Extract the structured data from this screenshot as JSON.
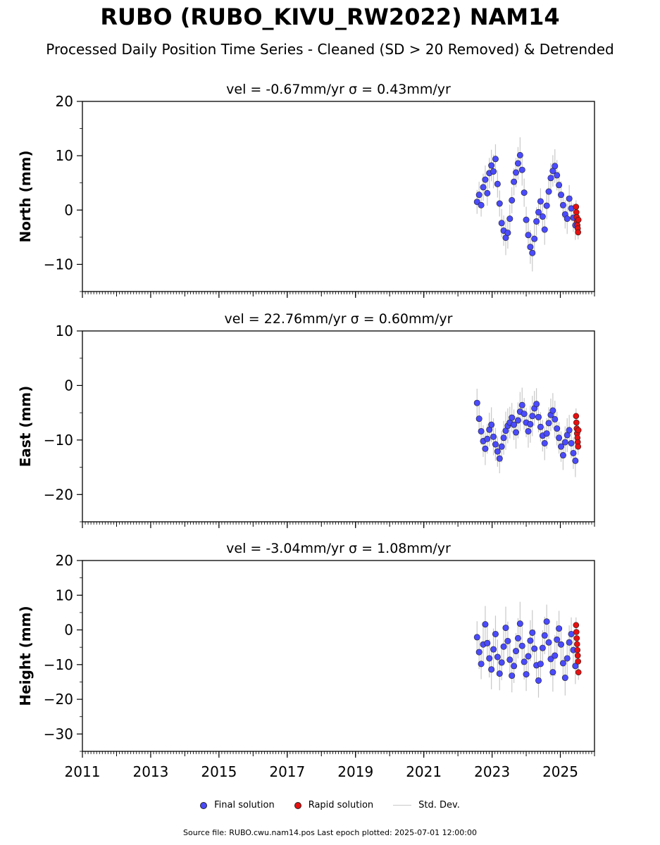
{
  "title": "RUBO (RUBO_KIVU_RW2022) NAM14",
  "subtitle": "Processed Daily Position Time Series - Cleaned (SD > 20 Removed) & Detrended",
  "legend": {
    "final": "Final solution",
    "rapid": "Rapid solution",
    "std": "Std. Dev."
  },
  "footer": {
    "source": "Source file: RUBO.cwu.nam14.pos",
    "last_epoch": "Last epoch plotted: 2025-07-01 12:00:00"
  },
  "colors": {
    "final": "#4a4aff",
    "rapid": "#e81010",
    "std": "#c8c8c8",
    "axis": "#000000"
  },
  "chart_data": [
    {
      "type": "scatter",
      "title": "vel = -0.67mm/yr   σ = 0.43mm/yr",
      "ylabel": "North (mm)",
      "xlim": [
        2011.0,
        2026.0
      ],
      "ylim": [
        -15,
        20
      ],
      "yticks": [
        -10,
        0,
        10,
        20
      ],
      "ytick_labels": [
        "−10",
        "0",
        "10",
        "20"
      ],
      "xticks": [
        2011,
        2013,
        2015,
        2017,
        2019,
        2021,
        2023,
        2025
      ],
      "show_xtick_labels": false,
      "series": [
        {
          "name": "Final solution",
          "x": [
            2022.56,
            2022.62,
            2022.68,
            2022.74,
            2022.8,
            2022.86,
            2022.92,
            2022.98,
            2023.04,
            2023.1,
            2023.16,
            2023.22,
            2023.28,
            2023.34,
            2023.4,
            2023.46,
            2023.52,
            2023.58,
            2023.64,
            2023.7,
            2023.76,
            2023.82,
            2023.88,
            2023.94,
            2024.0,
            2024.06,
            2024.12,
            2024.18,
            2024.24,
            2024.3,
            2024.36,
            2024.42,
            2024.48,
            2024.54,
            2024.6,
            2024.66,
            2024.72,
            2024.78,
            2024.84,
            2024.9,
            2024.96,
            2025.02,
            2025.08,
            2025.14,
            2025.2,
            2025.26,
            2025.32,
            2025.38,
            2025.44
          ],
          "y": [
            1.5,
            2.8,
            0.9,
            4.2,
            5.6,
            3.1,
            6.8,
            8.2,
            7.1,
            9.4,
            4.8,
            1.2,
            -2.4,
            -3.8,
            -5.1,
            -4.2,
            -1.6,
            1.8,
            5.2,
            6.9,
            8.6,
            10.1,
            7.4,
            3.2,
            -1.8,
            -4.6,
            -6.8,
            -7.9,
            -5.3,
            -2.1,
            -0.4,
            1.6,
            -1.2,
            -3.6,
            0.8,
            3.4,
            5.9,
            7.2,
            8.1,
            6.4,
            4.6,
            2.8,
            0.9,
            -0.8,
            -1.6,
            2.1,
            0.3,
            -1.4,
            -2.8
          ],
          "std": [
            2.2,
            2.4,
            2.1,
            2.5,
            2.6,
            2.3,
            2.8,
            2.9,
            3.1,
            2.7,
            2.5,
            2.4,
            2.6,
            2.8,
            3.2,
            2.9,
            2.6,
            2.4,
            2.5,
            2.7,
            3.0,
            3.3,
            2.9,
            2.6,
            2.4,
            2.7,
            3.1,
            3.4,
            2.9,
            2.6,
            2.5,
            2.4,
            2.6,
            2.8,
            2.5,
            2.6,
            2.7,
            2.9,
            3.1,
            2.8,
            2.6,
            2.5,
            2.4,
            2.6,
            2.8,
            2.5,
            2.4,
            2.6,
            2.7
          ]
        },
        {
          "name": "Rapid solution",
          "x": [
            2025.46,
            2025.47,
            2025.48,
            2025.49,
            2025.5,
            2025.51,
            2025.52,
            2025.53
          ],
          "y": [
            0.6,
            -0.4,
            -1.3,
            -2.1,
            -2.8,
            -3.4,
            -4.1,
            -1.8
          ],
          "std": [
            1.2,
            1.3,
            1.2,
            1.4,
            1.3,
            1.2,
            1.3,
            1.2
          ]
        }
      ]
    },
    {
      "type": "scatter",
      "title": "vel = 22.76mm/yr   σ = 0.60mm/yr",
      "ylabel": "East (mm)",
      "xlim": [
        2011.0,
        2026.0
      ],
      "ylim": [
        -25,
        10
      ],
      "yticks": [
        -20,
        -10,
        0,
        10
      ],
      "ytick_labels": [
        "−20",
        "−10",
        "0",
        "10"
      ],
      "xticks": [
        2011,
        2013,
        2015,
        2017,
        2019,
        2021,
        2023,
        2025
      ],
      "show_xtick_labels": false,
      "series": [
        {
          "name": "Final solution",
          "x": [
            2022.56,
            2022.62,
            2022.68,
            2022.74,
            2022.8,
            2022.86,
            2022.92,
            2022.98,
            2023.04,
            2023.1,
            2023.16,
            2023.22,
            2023.28,
            2023.34,
            2023.4,
            2023.46,
            2023.52,
            2023.58,
            2023.64,
            2023.7,
            2023.76,
            2023.82,
            2023.88,
            2023.94,
            2024.0,
            2024.06,
            2024.12,
            2024.18,
            2024.24,
            2024.3,
            2024.36,
            2024.42,
            2024.48,
            2024.54,
            2024.6,
            2024.66,
            2024.72,
            2024.78,
            2024.84,
            2024.9,
            2024.96,
            2025.02,
            2025.08,
            2025.14,
            2025.2,
            2025.26,
            2025.32,
            2025.38,
            2025.44
          ],
          "y": [
            -3.2,
            -6.1,
            -8.4,
            -10.2,
            -11.6,
            -9.8,
            -8.1,
            -7.2,
            -9.4,
            -10.8,
            -12.1,
            -13.4,
            -11.2,
            -9.6,
            -8.3,
            -7.4,
            -6.8,
            -5.9,
            -7.2,
            -8.6,
            -6.4,
            -4.8,
            -3.6,
            -5.2,
            -6.8,
            -8.4,
            -7.1,
            -5.6,
            -4.2,
            -3.4,
            -5.8,
            -7.6,
            -9.2,
            -10.6,
            -8.8,
            -6.9,
            -5.4,
            -4.6,
            -6.2,
            -7.9,
            -9.6,
            -11.2,
            -12.8,
            -10.4,
            -9.1,
            -8.2,
            -10.6,
            -12.4,
            -13.8
          ],
          "std": [
            2.6,
            2.8,
            2.5,
            2.9,
            3.0,
            2.7,
            3.1,
            3.2,
            3.4,
            3.0,
            2.8,
            2.7,
            2.9,
            3.1,
            3.5,
            3.2,
            2.9,
            2.7,
            2.8,
            3.0,
            3.3,
            3.6,
            3.2,
            2.9,
            2.7,
            3.0,
            3.4,
            3.7,
            3.2,
            2.9,
            2.8,
            2.7,
            2.9,
            3.1,
            2.8,
            2.9,
            3.0,
            3.2,
            3.4,
            3.1,
            2.9,
            2.8,
            2.7,
            2.9,
            3.1,
            2.8,
            2.7,
            2.9,
            3.0
          ]
        },
        {
          "name": "Rapid solution",
          "x": [
            2025.46,
            2025.47,
            2025.48,
            2025.49,
            2025.5,
            2025.51,
            2025.52,
            2025.53
          ],
          "y": [
            -5.6,
            -6.8,
            -7.9,
            -8.8,
            -9.6,
            -10.4,
            -11.2,
            -8.2
          ],
          "std": [
            1.4,
            1.5,
            1.4,
            1.6,
            1.5,
            1.4,
            1.5,
            1.4
          ]
        }
      ]
    },
    {
      "type": "scatter",
      "title": "vel = -3.04mm/yr   σ = 1.08mm/yr",
      "ylabel": "Height (mm)",
      "xlim": [
        2011.0,
        2026.0
      ],
      "ylim": [
        -35,
        20
      ],
      "yticks": [
        -30,
        -20,
        -10,
        0,
        10,
        20
      ],
      "ytick_labels": [
        "−30",
        "−20",
        "−10",
        "0",
        "10",
        "20"
      ],
      "xticks": [
        2011,
        2013,
        2015,
        2017,
        2019,
        2021,
        2023,
        2025
      ],
      "xtick_labels": [
        "2011",
        "2013",
        "2015",
        "2017",
        "2019",
        "2021",
        "2023",
        "2025"
      ],
      "show_xtick_labels": true,
      "series": [
        {
          "name": "Final solution",
          "x": [
            2022.56,
            2022.62,
            2022.68,
            2022.74,
            2022.8,
            2022.86,
            2022.92,
            2022.98,
            2023.04,
            2023.1,
            2023.16,
            2023.22,
            2023.28,
            2023.34,
            2023.4,
            2023.46,
            2023.52,
            2023.58,
            2023.64,
            2023.7,
            2023.76,
            2023.82,
            2023.88,
            2023.94,
            2024.0,
            2024.06,
            2024.12,
            2024.18,
            2024.24,
            2024.3,
            2024.36,
            2024.42,
            2024.48,
            2024.54,
            2024.6,
            2024.66,
            2024.72,
            2024.78,
            2024.84,
            2024.9,
            2024.96,
            2025.02,
            2025.08,
            2025.14,
            2025.2,
            2025.26,
            2025.32,
            2025.38,
            2025.44
          ],
          "y": [
            -2.1,
            -6.4,
            -9.8,
            -4.2,
            1.6,
            -3.8,
            -8.2,
            -11.4,
            -5.6,
            -1.2,
            -7.8,
            -12.6,
            -9.4,
            -4.8,
            0.6,
            -3.2,
            -8.6,
            -13.2,
            -10.4,
            -6.1,
            -2.4,
            1.8,
            -4.6,
            -9.2,
            -12.8,
            -7.6,
            -3.1,
            -0.8,
            -5.4,
            -10.2,
            -14.6,
            -9.8,
            -5.2,
            -1.6,
            2.4,
            -3.6,
            -8.4,
            -12.2,
            -7.4,
            -2.8,
            0.4,
            -4.2,
            -9.6,
            -13.8,
            -8.2,
            -3.6,
            -1.2,
            -5.8,
            -10.4
          ],
          "std": [
            4.6,
            4.9,
            4.4,
            5.1,
            5.3,
            4.8,
            5.5,
            5.7,
            6.0,
            5.3,
            5.0,
            4.8,
            5.1,
            5.4,
            6.1,
            5.6,
            5.1,
            4.8,
            4.9,
            5.2,
            5.8,
            6.3,
            5.6,
            5.1,
            4.8,
            5.3,
            5.9,
            6.5,
            5.6,
            5.1,
            4.9,
            4.8,
            5.1,
            5.4,
            4.9,
            5.1,
            5.2,
            5.6,
            5.9,
            5.4,
            5.1,
            4.9,
            4.8,
            5.1,
            5.4,
            4.9,
            4.8,
            5.1,
            5.2
          ]
        },
        {
          "name": "Rapid solution",
          "x": [
            2025.46,
            2025.47,
            2025.48,
            2025.49,
            2025.5,
            2025.51,
            2025.52,
            2025.53
          ],
          "y": [
            1.4,
            -0.6,
            -2.4,
            -4.1,
            -5.8,
            -7.4,
            -9.1,
            -12.2
          ],
          "std": [
            2.2,
            2.4,
            2.2,
            2.5,
            2.4,
            2.2,
            2.4,
            2.2
          ]
        }
      ]
    }
  ]
}
